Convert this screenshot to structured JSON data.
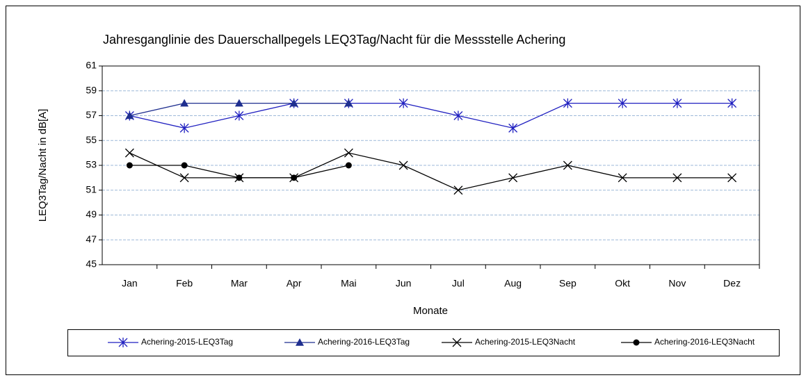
{
  "chart_data": {
    "type": "line",
    "title": "Jahresganglinie des Dauerschallpegels LEQ3Tag/Nacht für die Messstelle Achering",
    "x_label": "Monate",
    "y_label": "LEQ3Tag/Nacht in dB[A]",
    "categories": [
      "Jan",
      "Feb",
      "Mar",
      "Apr",
      "Mai",
      "Jun",
      "Jul",
      "Aug",
      "Sep",
      "Okt",
      "Nov",
      "Dez"
    ],
    "ylim": [
      45,
      61
    ],
    "yticks": [
      45,
      47,
      49,
      51,
      53,
      55,
      57,
      59,
      61
    ],
    "grid": true,
    "legend": "bottom",
    "series": [
      {
        "name": "Achering-2015-LEQ3Tag",
        "color": "#1f1fc0",
        "marker": "asterisk",
        "values": [
          57,
          56,
          57,
          58,
          58,
          58,
          57,
          56,
          58,
          58,
          58,
          58
        ]
      },
      {
        "name": "Achering-2016-LEQ3Tag",
        "color": "#1f2f8f",
        "marker": "triangle",
        "values": [
          57,
          58,
          58,
          58,
          58,
          null,
          null,
          null,
          null,
          null,
          null,
          null
        ]
      },
      {
        "name": "Achering-2015-LEQ3Nacht",
        "color": "#000000",
        "marker": "x",
        "values": [
          54,
          52,
          52,
          52,
          54,
          53,
          51,
          52,
          53,
          52,
          52,
          52
        ]
      },
      {
        "name": "Achering-2016-LEQ3Nacht",
        "color": "#000000",
        "marker": "circle",
        "values": [
          53,
          53,
          52,
          52,
          53,
          null,
          null,
          null,
          null,
          null,
          null,
          null
        ]
      }
    ]
  }
}
